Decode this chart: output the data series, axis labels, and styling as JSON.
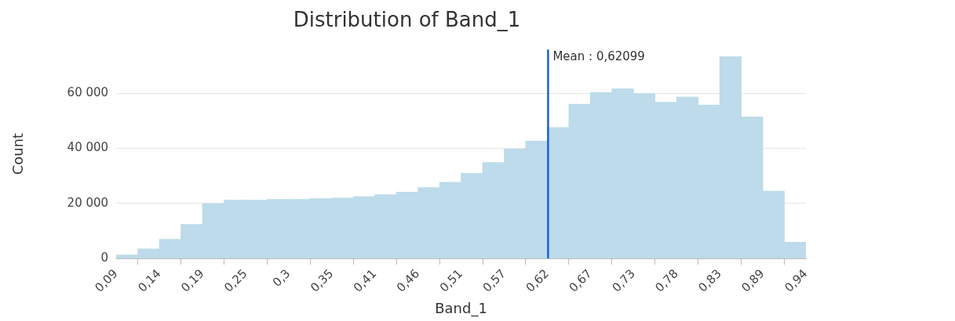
{
  "chart_data": {
    "type": "histogram",
    "title": "Distribution of Band_1",
    "xlabel": "Band_1",
    "ylabel": "Count",
    "bins": [
      0.088,
      0.1146,
      0.1412,
      0.1678,
      0.1944,
      0.221,
      0.2476,
      0.2742,
      0.3008,
      0.3274,
      0.354,
      0.3806,
      0.4072,
      0.4338,
      0.4604,
      0.487,
      0.5136,
      0.5402,
      0.5668,
      0.5934,
      0.62,
      0.6466,
      0.6732,
      0.6998,
      0.7264,
      0.753,
      0.7796,
      0.8062,
      0.8328,
      0.8594,
      0.886,
      0.9126,
      0.9392
    ],
    "values": [
      1300,
      3500,
      7000,
      12400,
      19900,
      21200,
      21200,
      21500,
      21500,
      21800,
      22000,
      22500,
      23200,
      24100,
      25800,
      27700,
      31000,
      34900,
      39800,
      42700,
      47600,
      56100,
      60400,
      61700,
      60000,
      56800,
      58700,
      55800,
      73400,
      51500,
      24500,
      5900
    ],
    "color": "#bddbea",
    "xlim": [
      0.088,
      0.9392
    ],
    "xticks": [
      {
        "value": 0.088,
        "label": "0,09"
      },
      {
        "value": 0.1412,
        "label": "0,14"
      },
      {
        "value": 0.1944,
        "label": "0,19"
      },
      {
        "value": 0.2476,
        "label": "0,25"
      },
      {
        "value": 0.3008,
        "label": "0,3"
      },
      {
        "value": 0.354,
        "label": "0,35"
      },
      {
        "value": 0.4072,
        "label": "0,41"
      },
      {
        "value": 0.4604,
        "label": "0,46"
      },
      {
        "value": 0.5136,
        "label": "0,51"
      },
      {
        "value": 0.5668,
        "label": "0,57"
      },
      {
        "value": 0.62,
        "label": "0,62"
      },
      {
        "value": 0.6732,
        "label": "0,67"
      },
      {
        "value": 0.7264,
        "label": "0,73"
      },
      {
        "value": 0.7796,
        "label": "0,78"
      },
      {
        "value": 0.8328,
        "label": "0,83"
      },
      {
        "value": 0.886,
        "label": "0,89"
      },
      {
        "value": 0.9392,
        "label": "0,94"
      }
    ],
    "ylim": [
      0,
      76000
    ],
    "yticks": [
      0,
      {
        "value": 20000,
        "label": "20 000"
      },
      {
        "value": 40000,
        "label": "40 000"
      },
      {
        "value": 60000,
        "label": "60 000"
      }
    ],
    "ref_lines": [
      {
        "axis": "x",
        "value": 0.62099,
        "label": "Mean : 0,62099",
        "color": "#1a5fe0"
      }
    ],
    "grid": "y"
  }
}
